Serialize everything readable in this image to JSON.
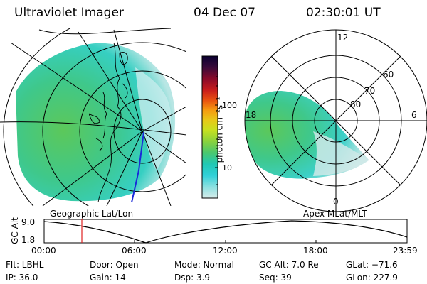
{
  "header": {
    "instrument": "Ultraviolet Imager",
    "date": "04 Dec 07",
    "time": "02:30:01 UT"
  },
  "left_panel": {
    "caption": "Geographic Lat/Lon"
  },
  "right_panel": {
    "caption": "Apex MLat/MLT",
    "ring_labels": [
      "60",
      "70",
      "80"
    ],
    "mlt_labels": {
      "top": "12",
      "left": "18",
      "right": "6",
      "bottom": "0"
    }
  },
  "colorbar": {
    "unit_label": "photon cm⁻²s⁻¹",
    "tick_labels": [
      "100",
      "10"
    ],
    "colors": [
      "#0a0030",
      "#3a0a3a",
      "#8a0a2a",
      "#c81c1c",
      "#e85010",
      "#f59a10",
      "#e8c818",
      "#c8e020",
      "#8ad23c",
      "#4ac86e",
      "#20c8b4",
      "#30d0d8",
      "#8ae0e0",
      "#d8ecea"
    ]
  },
  "altitude_plot": {
    "ylabel": "GC Alt",
    "y_top": "9.0",
    "y_bottom": "1.8",
    "x_ticks": [
      "00:00",
      "06:00",
      "12:00",
      "18:00",
      "23:59"
    ],
    "current_time_marker": "02:30"
  },
  "status": {
    "flt": "Flt: LBHL",
    "ip": "IP: 36.0",
    "door": "Door: Open",
    "gain": "Gain: 14",
    "mode": "Mode: Normal",
    "dsp": "Dsp:    3.9",
    "gc_alt": "GC Alt: 7.0 Re",
    "seq": "Seq: 39",
    "glat": "GLat: −71.6",
    "glon": "GLon: 227.9"
  }
}
